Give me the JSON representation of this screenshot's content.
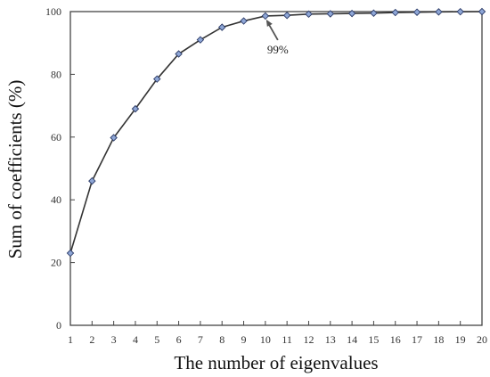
{
  "chart_data": {
    "type": "line",
    "title": "",
    "xlabel": "The number of eigenvalues",
    "ylabel": "Sum of coefficients (%)",
    "x": [
      1,
      2,
      3,
      4,
      5,
      6,
      7,
      8,
      9,
      10,
      11,
      12,
      13,
      14,
      15,
      16,
      17,
      18,
      19,
      20
    ],
    "series": [
      {
        "values": [
          23,
          46,
          59.8,
          69,
          78.5,
          86.5,
          91,
          95,
          97,
          98.6,
          98.8,
          99.2,
          99.3,
          99.4,
          99.5,
          99.7,
          99.8,
          99.9,
          99.95,
          100
        ]
      }
    ],
    "xlim": [
      1,
      20
    ],
    "ylim": [
      0,
      100
    ],
    "xticks": [
      1,
      2,
      3,
      4,
      5,
      6,
      7,
      8,
      9,
      10,
      11,
      12,
      13,
      14,
      15,
      16,
      17,
      18,
      19,
      20
    ],
    "yticks": [
      0,
      20,
      40,
      60,
      80,
      100
    ],
    "grid": false,
    "annotations": [
      {
        "text": "99%",
        "x": 10,
        "y": 98.6
      }
    ],
    "colors": {
      "line": "#333333",
      "marker_fill": "#8ea6d6",
      "marker_stroke": "#2b3a66",
      "axis": "#444444"
    }
  }
}
